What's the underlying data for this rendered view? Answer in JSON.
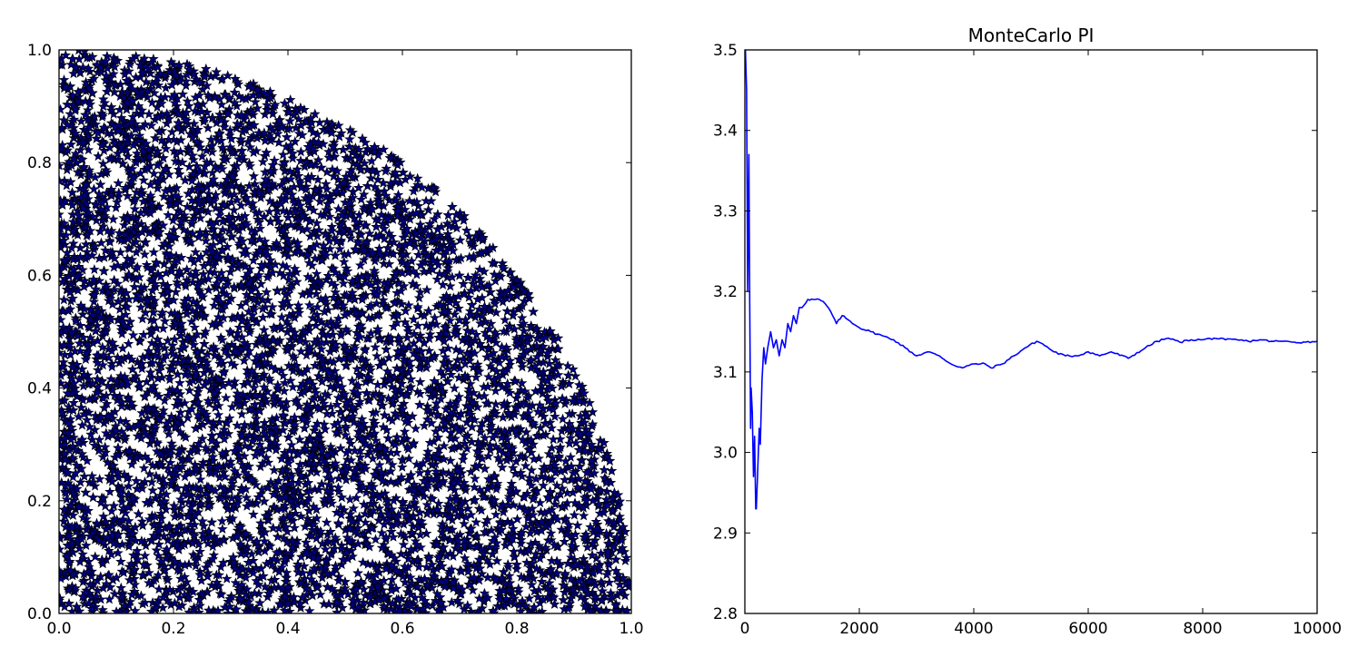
{
  "chart_data": [
    {
      "type": "scatter",
      "title": "",
      "xlabel": "",
      "ylabel": "",
      "xlim": [
        0,
        1
      ],
      "ylim": [
        0,
        1
      ],
      "xticks": [
        "0.0",
        "0.2",
        "0.4",
        "0.6",
        "0.8",
        "1.0"
      ],
      "yticks": [
        "0.0",
        "0.2",
        "0.4",
        "0.6",
        "0.8",
        "1.0"
      ],
      "marker": "star",
      "marker_fill": "#00007f",
      "marker_edge": "#000000",
      "grid": false,
      "region": "points (x, y) uniformly distributed with x^2 + y^2 <= 1 (quarter unit circle)",
      "approx_point_count": 7850
    },
    {
      "type": "line",
      "title": "MonteCarlo PI",
      "xlabel": "",
      "ylabel": "",
      "xlim": [
        0,
        10000
      ],
      "ylim": [
        2.8,
        3.5
      ],
      "xticks": [
        "0",
        "2000",
        "4000",
        "6000",
        "8000",
        "10000"
      ],
      "yticks": [
        "2.8",
        "2.9",
        "3.0",
        "3.1",
        "3.2",
        "3.3",
        "3.4",
        "3.5"
      ],
      "line_color": "#0000ff",
      "grid": false,
      "series": [
        {
          "x": [
            10,
            30,
            50,
            70,
            80,
            100,
            110,
            130,
            150,
            170,
            190,
            200,
            220,
            250,
            270,
            300,
            330,
            360,
            400,
            450,
            500,
            550,
            600,
            650,
            700,
            750,
            800,
            850,
            900,
            950,
            1000,
            1100,
            1200,
            1300,
            1400,
            1500,
            1600,
            1700,
            1800,
            2000,
            2200,
            2400,
            2600,
            2800,
            3000,
            3200,
            3400,
            3600,
            3800,
            4000,
            4200,
            4300,
            4500,
            4700,
            4900,
            5100,
            5200,
            5400,
            5600,
            5800,
            6000,
            6200,
            6400,
            6700,
            7000,
            7200,
            7400,
            7600,
            7800,
            8000,
            8200,
            8400,
            8600,
            8800,
            9000,
            9200,
            9400,
            9600,
            9800,
            10000
          ],
          "values": [
            3.5,
            3.45,
            3.2,
            3.37,
            3.25,
            3.03,
            3.08,
            3.05,
            2.97,
            3.02,
            2.93,
            2.93,
            2.97,
            3.03,
            3.01,
            3.09,
            3.13,
            3.11,
            3.13,
            3.15,
            3.13,
            3.14,
            3.12,
            3.14,
            3.13,
            3.16,
            3.15,
            3.17,
            3.16,
            3.18,
            3.18,
            3.19,
            3.19,
            3.19,
            3.185,
            3.175,
            3.16,
            3.17,
            3.165,
            3.155,
            3.15,
            3.145,
            3.14,
            3.13,
            3.12,
            3.125,
            3.12,
            3.11,
            3.105,
            3.11,
            3.11,
            3.105,
            3.11,
            3.12,
            3.13,
            3.138,
            3.135,
            3.125,
            3.12,
            3.12,
            3.125,
            3.12,
            3.125,
            3.117,
            3.13,
            3.138,
            3.142,
            3.137,
            3.14,
            3.14,
            3.142,
            3.14,
            3.14,
            3.138,
            3.14,
            3.138,
            3.138,
            3.137,
            3.137,
            3.138
          ]
        }
      ]
    }
  ]
}
